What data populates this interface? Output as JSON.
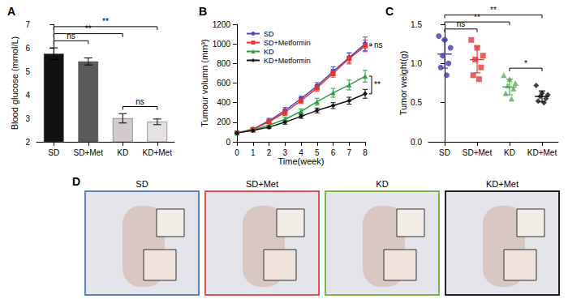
{
  "chart_data": [
    {
      "type": "bar",
      "title": "A",
      "categories": [
        "SD",
        "SD+Met",
        "KD",
        "KD+Met"
      ],
      "values": [
        5.75,
        5.42,
        3.0,
        2.85
      ],
      "errors": [
        0.25,
        0.15,
        0.2,
        0.12
      ],
      "colors": [
        "#111111",
        "#5a5a5a",
        "#d3cbcb",
        "#e6e2e2"
      ],
      "y_label": "Blood glucose (mmol/L)",
      "ylim": [
        2,
        7
      ],
      "yticks": [
        2,
        3,
        4,
        5,
        6,
        7
      ],
      "grid": false,
      "annotations": [
        {
          "from": 0,
          "to": 1,
          "text": "ns"
        },
        {
          "from": 0,
          "to": 2,
          "text": "**"
        },
        {
          "from": 0,
          "to": 3,
          "text": "**"
        },
        {
          "from": 2,
          "to": 3,
          "text": "ns"
        }
      ]
    },
    {
      "type": "line",
      "title": "B",
      "x": [
        0,
        1,
        2,
        3,
        4,
        5,
        6,
        7,
        8
      ],
      "x_label": "Time(week)",
      "y_label": "Tumour volumn (mm³)",
      "xlim": [
        0,
        8
      ],
      "xticks": [
        0,
        1,
        2,
        3,
        4,
        5,
        6,
        7,
        8
      ],
      "ylim": [
        0,
        1200
      ],
      "yticks": [
        0,
        200,
        400,
        600,
        800,
        1000,
        1200
      ],
      "grid": false,
      "legend": "upper left",
      "series": [
        {
          "name": "SD",
          "color": "#4a4dc0",
          "marker": "circle",
          "values": [
            90,
            130,
            215,
            320,
            440,
            570,
            720,
            860,
            1000
          ],
          "errors": [
            15,
            15,
            25,
            30,
            25,
            35,
            45,
            50,
            70
          ]
        },
        {
          "name": "SD+Metformin",
          "color": "#e8322e",
          "marker": "square",
          "values": [
            90,
            125,
            205,
            300,
            420,
            550,
            700,
            850,
            980
          ],
          "errors": [
            15,
            15,
            20,
            30,
            30,
            35,
            40,
            55,
            60
          ]
        },
        {
          "name": "KD",
          "color": "#2e9e45",
          "marker": "triangle",
          "values": [
            90,
            120,
            170,
            230,
            310,
            410,
            500,
            580,
            670
          ],
          "errors": [
            15,
            15,
            20,
            20,
            25,
            35,
            45,
            50,
            60
          ]
        },
        {
          "name": "KD+Metformin",
          "color": "#111111",
          "marker": "diamond",
          "values": [
            90,
            115,
            150,
            200,
            260,
            320,
            370,
            420,
            490
          ],
          "errors": [
            15,
            15,
            15,
            20,
            20,
            25,
            30,
            35,
            45
          ]
        }
      ],
      "annotations": [
        {
          "from": "SD",
          "to": "SD+Metformin",
          "text": "ns"
        },
        {
          "from": "KD",
          "to": "KD+Metformin",
          "text": "**"
        }
      ]
    },
    {
      "type": "scatter",
      "title": "C",
      "categories": [
        "SD",
        "SD+Met",
        "KD",
        "KD+Met"
      ],
      "values": [
        [
          1.35,
          1.3,
          1.2,
          1.1,
          1.0,
          0.95,
          0.85
        ],
        [
          1.3,
          1.2,
          1.1,
          1.05,
          0.95,
          0.85,
          0.8
        ],
        [
          0.85,
          0.8,
          0.75,
          0.72,
          0.68,
          0.62,
          0.55
        ],
        [
          0.72,
          0.62,
          0.6,
          0.58,
          0.55,
          0.52,
          0.5
        ]
      ],
      "means": [
        1.12,
        1.05,
        0.7,
        0.58
      ],
      "errors": [
        0.18,
        0.17,
        0.1,
        0.07
      ],
      "colors": [
        "#3d3fa8",
        "#e23b3b",
        "#4caf50",
        "#111111"
      ],
      "markers": [
        "circle",
        "square",
        "triangle",
        "diamond"
      ],
      "y_label": "Tumor weight(g)",
      "ylim": [
        0,
        1.5
      ],
      "yticks": [
        {
          "value": 0,
          "label": "0.0"
        },
        {
          "value": 0.5,
          "label": "0.5"
        },
        {
          "value": 1.0,
          "label": "1.0"
        },
        {
          "value": 1.5,
          "label": "1.5"
        }
      ],
      "grid": false,
      "annotations": [
        {
          "from": 0,
          "to": 1,
          "text": "ns"
        },
        {
          "from": 0,
          "to": 2,
          "text": "**"
        },
        {
          "from": 0,
          "to": 3,
          "text": "**"
        },
        {
          "from": 2,
          "to": 3,
          "text": "*"
        }
      ]
    }
  ],
  "photos": {
    "title": "D",
    "labels": [
      "SD",
      "SD+Met",
      "KD",
      "KD+Met"
    ],
    "colors": [
      "#5a80c8",
      "#e05050",
      "#7ab648",
      "#222222"
    ]
  }
}
